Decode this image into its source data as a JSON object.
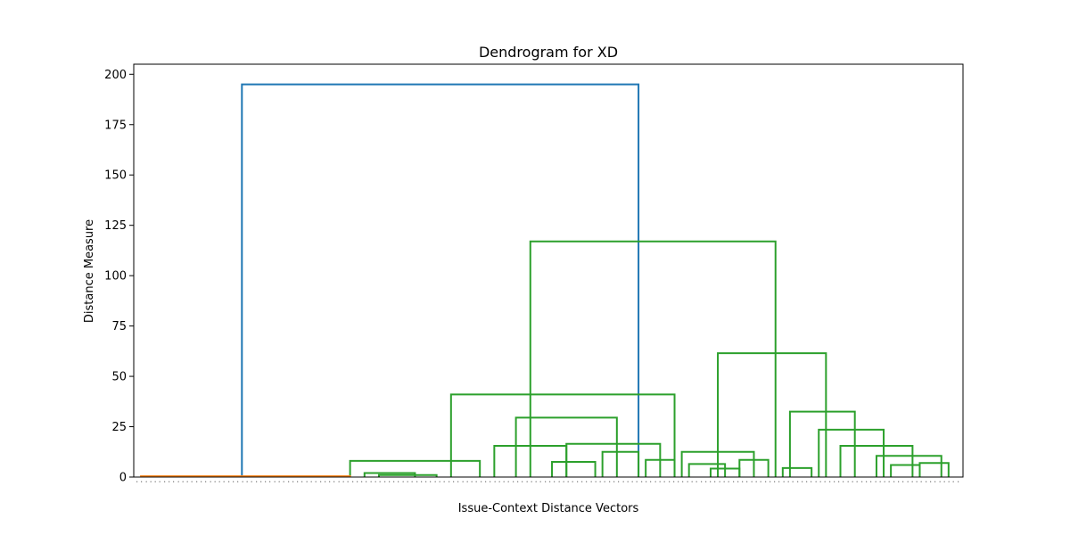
{
  "chart_data": {
    "type": "dendrogram",
    "title": "Dendrogram for XD",
    "xlabel": "Issue-Context Distance Vectors",
    "ylabel": "Distance Measure",
    "ylim": [
      0,
      205
    ],
    "yticks": [
      0,
      25,
      50,
      75,
      100,
      125,
      150,
      175,
      200
    ],
    "grid": false,
    "colors": {
      "root": "#1f77b4",
      "cluster_orange": "#ff7f0e",
      "cluster_green": "#2ca02c",
      "axis": "#000000",
      "leaf_labels": "#555555"
    },
    "merges": [
      {
        "left": 1.5,
        "right": 7,
        "height": 195,
        "color": "#1f77b4"
      },
      {
        "left": 5.5,
        "right": 8.9,
        "height": 117,
        "color": "#2ca02c"
      },
      {
        "left": 4.4,
        "right": 7.5,
        "height": 41,
        "color": "#2ca02c"
      },
      {
        "left": 3.0,
        "right": 4.8,
        "height": 8,
        "color": "#2ca02c"
      },
      {
        "left": 5.3,
        "right": 6.7,
        "height": 29.5,
        "color": "#2ca02c"
      },
      {
        "left": 5.0,
        "right": 6.0,
        "height": 15.5,
        "color": "#2ca02c"
      },
      {
        "left": 6.0,
        "right": 7.3,
        "height": 16.5,
        "color": "#2ca02c"
      },
      {
        "left": 8.1,
        "right": 9.6,
        "height": 61.5,
        "color": "#2ca02c"
      },
      {
        "left": 7.6,
        "right": 8.6,
        "height": 12.5,
        "color": "#2ca02c"
      },
      {
        "left": 9.1,
        "right": 10.0,
        "height": 32.5,
        "color": "#2ca02c"
      },
      {
        "left": 9.5,
        "right": 10.4,
        "height": 23.5,
        "color": "#2ca02c"
      },
      {
        "left": 9.8,
        "right": 10.8,
        "height": 15.5,
        "color": "#2ca02c"
      },
      {
        "left": 10.3,
        "right": 11.2,
        "height": 10.5,
        "color": "#2ca02c"
      },
      {
        "left": 9.0,
        "right": 9.4,
        "height": 4.5,
        "color": "#2ca02c"
      },
      {
        "left": 7.7,
        "right": 8.2,
        "height": 6.5,
        "color": "#2ca02c"
      },
      {
        "left": 8.0,
        "right": 8.4,
        "height": 4.2,
        "color": "#2ca02c"
      },
      {
        "left": 3.2,
        "right": 3.9,
        "height": 2,
        "color": "#2ca02c"
      },
      {
        "left": 3.4,
        "right": 4.2,
        "height": 1,
        "color": "#2ca02c"
      },
      {
        "left": 0.1,
        "right": 3.0,
        "height": 0.4,
        "color": "#ff7f0e"
      },
      {
        "left": 5.8,
        "right": 6.4,
        "height": 7.5,
        "color": "#2ca02c"
      },
      {
        "left": 6.5,
        "right": 7.0,
        "height": 12.5,
        "color": "#2ca02c"
      },
      {
        "left": 7.1,
        "right": 7.5,
        "height": 8.5,
        "color": "#2ca02c"
      },
      {
        "left": 8.4,
        "right": 8.8,
        "height": 8.5,
        "color": "#2ca02c"
      },
      {
        "left": 10.5,
        "right": 10.9,
        "height": 6,
        "color": "#2ca02c"
      },
      {
        "left": 10.9,
        "right": 11.3,
        "height": 7,
        "color": "#2ca02c"
      }
    ]
  }
}
